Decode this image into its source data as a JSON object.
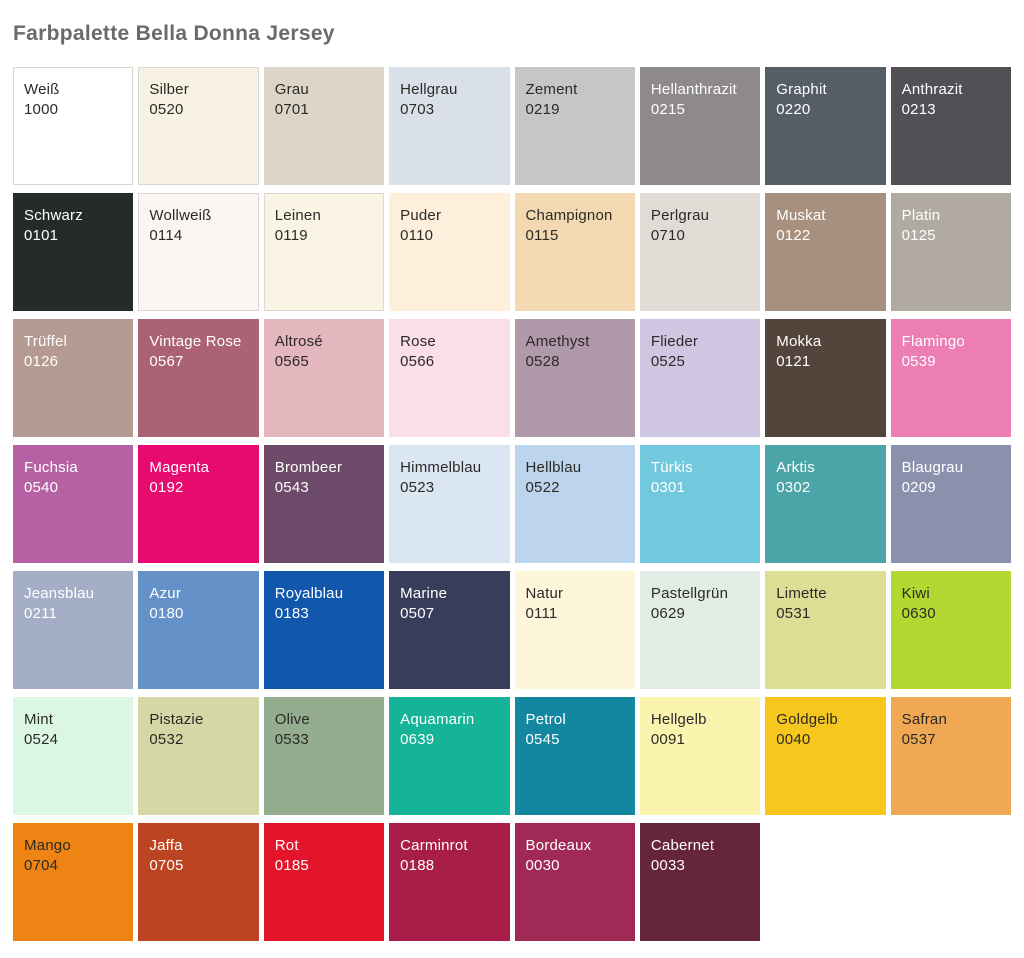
{
  "title": "Farbpalette Bella Donna Jersey",
  "colors": {
    "background": "#ffffff",
    "title_text": "#6a6a6a",
    "swatch_text_dark": "#2b2a27",
    "swatch_text_light": "#ffffff",
    "light_swatch_border": "#d9d7d1"
  },
  "palette": {
    "columns": 8,
    "rows": 7,
    "swatches": [
      {
        "name": "Weiß",
        "code": "1000",
        "color": "#ffffff",
        "text": "dark",
        "border": true
      },
      {
        "name": "Silber",
        "code": "0520",
        "color": "#f6f1e2",
        "text": "dark",
        "border": true
      },
      {
        "name": "Grau",
        "code": "0701",
        "color": "#ddd5c7",
        "text": "dark",
        "border": false
      },
      {
        "name": "Hellgrau",
        "code": "0703",
        "color": "#d9e0ea",
        "text": "dark",
        "border": false
      },
      {
        "name": "Zement",
        "code": "0219",
        "color": "#c5c7c5",
        "text": "dark",
        "border": false
      },
      {
        "name": "Hellanthrazit",
        "code": "0215",
        "color": "#8e8a8b",
        "text": "light",
        "border": false
      },
      {
        "name": "Graphit",
        "code": "0220",
        "color": "#555d66",
        "text": "light",
        "border": false
      },
      {
        "name": "Anthrazit",
        "code": "0213",
        "color": "#524f55",
        "text": "light",
        "border": false
      },
      {
        "name": "Schwarz",
        "code": "0101",
        "color": "#262a29",
        "text": "light",
        "border": false
      },
      {
        "name": "Wollweiß",
        "code": "0114",
        "color": "#faf5f2",
        "text": "dark",
        "border": true
      },
      {
        "name": "Leinen",
        "code": "0119",
        "color": "#faf4e4",
        "text": "dark",
        "border": true
      },
      {
        "name": "Puder",
        "code": "0110",
        "color": "#fdefdc",
        "text": "dark",
        "border": false
      },
      {
        "name": "Champignon",
        "code": "0115",
        "color": "#f2d9b1",
        "text": "dark",
        "border": false
      },
      {
        "name": "Perlgrau",
        "code": "0710",
        "color": "#dedcd4",
        "text": "dark",
        "border": false
      },
      {
        "name": "Muskat",
        "code": "0122",
        "color": "#a8907e",
        "text": "light",
        "border": false
      },
      {
        "name": "Platin",
        "code": "0125",
        "color": "#b1aaa3",
        "text": "light",
        "border": false
      },
      {
        "name": "Trüffel",
        "code": "0126",
        "color": "#b49a90",
        "text": "light",
        "border": false
      },
      {
        "name": "Vintage Rose",
        "code": "0567",
        "color": "#ac6275",
        "text": "light",
        "border": false
      },
      {
        "name": "Altrosé",
        "code": "0565",
        "color": "#e4b6bd",
        "text": "dark",
        "border": false
      },
      {
        "name": "Rose",
        "code": "0566",
        "color": "#fadfe7",
        "text": "dark",
        "border": false
      },
      {
        "name": "Amethyst",
        "code": "0528",
        "color": "#b099aa",
        "text": "dark",
        "border": false
      },
      {
        "name": "Flieder",
        "code": "0525",
        "color": "#cfc6e2",
        "text": "dark",
        "border": false
      },
      {
        "name": "Mokka",
        "code": "0121",
        "color": "#53443c",
        "text": "light",
        "border": false
      },
      {
        "name": "Flamingo",
        "code": "0539",
        "color": "#ec7eb4",
        "text": "light",
        "border": false
      },
      {
        "name": "Fuchsia",
        "code": "0540",
        "color": "#b561a3",
        "text": "light",
        "border": false
      },
      {
        "name": "Magenta",
        "code": "0192",
        "color": "#e70a6f",
        "text": "light",
        "border": false
      },
      {
        "name": "Brombeer",
        "code": "0543",
        "color": "#6d4a6a",
        "text": "light",
        "border": false
      },
      {
        "name": "Himmelblau",
        "code": "0523",
        "color": "#dbe6f3",
        "text": "dark",
        "border": false
      },
      {
        "name": "Hellblau",
        "code": "0522",
        "color": "#bcd4ec",
        "text": "dark",
        "border": false
      },
      {
        "name": "Türkis",
        "code": "0301",
        "color": "#72c8dc",
        "text": "light",
        "border": false
      },
      {
        "name": "Arktis",
        "code": "0302",
        "color": "#4ba5a8",
        "text": "light",
        "border": false
      },
      {
        "name": "Blaugrau",
        "code": "0209",
        "color": "#8b91ad",
        "text": "light",
        "border": false
      },
      {
        "name": "Jeansblau",
        "code": "0211",
        "color": "#a4aec6",
        "text": "light",
        "border": false
      },
      {
        "name": "Azur",
        "code": "0180",
        "color": "#6491c8",
        "text": "light",
        "border": false
      },
      {
        "name": "Royalblau",
        "code": "0183",
        "color": "#1157ab",
        "text": "light",
        "border": false
      },
      {
        "name": "Marine",
        "code": "0507",
        "color": "#383d5c",
        "text": "light",
        "border": false
      },
      {
        "name": "Natur",
        "code": "0111",
        "color": "#fdf6da",
        "text": "dark",
        "border": false
      },
      {
        "name": "Pastellgrün",
        "code": "0629",
        "color": "#e1ece5",
        "text": "dark",
        "border": false
      },
      {
        "name": "Limette",
        "code": "0531",
        "color": "#dedd96",
        "text": "dark",
        "border": false
      },
      {
        "name": "Kiwi",
        "code": "0630",
        "color": "#b4d832",
        "text": "dark",
        "border": false
      },
      {
        "name": "Mint",
        "code": "0524",
        "color": "#dcf6e4",
        "text": "dark",
        "border": false
      },
      {
        "name": "Pistazie",
        "code": "0532",
        "color": "#d4d8a6",
        "text": "dark",
        "border": false
      },
      {
        "name": "Olive",
        "code": "0533",
        "color": "#94ad8e",
        "text": "dark",
        "border": false
      },
      {
        "name": "Aquamarin",
        "code": "0639",
        "color": "#15b498",
        "text": "light",
        "border": false
      },
      {
        "name": "Petrol",
        "code": "0545",
        "color": "#1487a0",
        "text": "light",
        "border": false
      },
      {
        "name": "Hellgelb",
        "code": "0091",
        "color": "#fbf4ae",
        "text": "dark",
        "border": false
      },
      {
        "name": "Goldgelb",
        "code": "0040",
        "color": "#f7c71e",
        "text": "dark",
        "border": false
      },
      {
        "name": "Safran",
        "code": "0537",
        "color": "#f0a854",
        "text": "dark",
        "border": false
      },
      {
        "name": "Mango",
        "code": "0704",
        "color": "#ee8413",
        "text": "dark",
        "border": false
      },
      {
        "name": "Jaffa",
        "code": "0705",
        "color": "#bc4423",
        "text": "light",
        "border": false
      },
      {
        "name": "Rot",
        "code": "0185",
        "color": "#e4142b",
        "text": "light",
        "border": false
      },
      {
        "name": "Carminrot",
        "code": "0188",
        "color": "#a91e48",
        "text": "light",
        "border": false
      },
      {
        "name": "Bordeaux",
        "code": "0030",
        "color": "#a02a55",
        "text": "light",
        "border": false
      },
      {
        "name": "Cabernet",
        "code": "0033",
        "color": "#662639",
        "text": "light",
        "border": false
      }
    ]
  }
}
